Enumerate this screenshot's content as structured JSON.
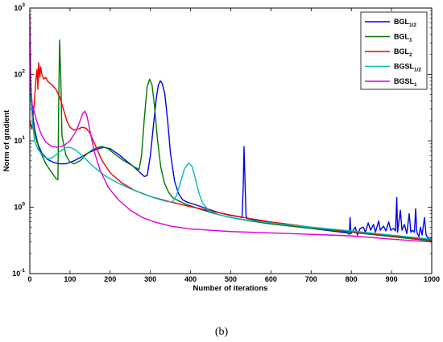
{
  "caption": "(b)",
  "chart_data": {
    "type": "line",
    "xlabel": "Number of iterations",
    "ylabel": "Norm of gradient",
    "xlim": [
      0,
      1000
    ],
    "ylim": [
      0.1,
      1000
    ],
    "yscale": "log",
    "xticks": [
      "0",
      "100",
      "200",
      "300",
      "400",
      "500",
      "600",
      "700",
      "800",
      "900",
      "1000"
    ],
    "yticks": [
      {
        "base": "10",
        "exp": "3",
        "value": 1000
      },
      {
        "base": "10",
        "exp": "2",
        "value": 100
      },
      {
        "base": "10",
        "exp": "1",
        "value": 10
      },
      {
        "base": "10",
        "exp": "0",
        "value": 1
      },
      {
        "base": "10",
        "exp": "-1",
        "value": 0.1
      }
    ],
    "grid": false,
    "legend_position": "top-right",
    "series": [
      {
        "name": "BGL",
        "sub": "1/2",
        "color": "#0000ee",
        "points": [
          [
            0,
            300
          ],
          [
            3,
            60
          ],
          [
            7,
            25
          ],
          [
            12,
            15
          ],
          [
            20,
            9
          ],
          [
            30,
            6.5
          ],
          [
            45,
            5.2
          ],
          [
            60,
            4.7
          ],
          [
            75,
            4.5
          ],
          [
            90,
            4.5
          ],
          [
            110,
            5.0
          ],
          [
            130,
            5.8
          ],
          [
            150,
            6.8
          ],
          [
            170,
            7.6
          ],
          [
            185,
            8.0
          ],
          [
            200,
            7.6
          ],
          [
            220,
            6.3
          ],
          [
            240,
            5.0
          ],
          [
            260,
            4.0
          ],
          [
            275,
            3.3
          ],
          [
            285,
            2.9
          ],
          [
            292,
            3.0
          ],
          [
            300,
            6
          ],
          [
            308,
            18
          ],
          [
            315,
            45
          ],
          [
            320,
            70
          ],
          [
            325,
            80
          ],
          [
            330,
            72
          ],
          [
            336,
            50
          ],
          [
            343,
            20
          ],
          [
            350,
            6.5
          ],
          [
            360,
            2.5
          ],
          [
            370,
            1.6
          ],
          [
            380,
            1.3
          ],
          [
            390,
            1.2
          ],
          [
            400,
            1.15
          ],
          [
            420,
            1.05
          ],
          [
            440,
            0.95
          ],
          [
            460,
            0.87
          ],
          [
            480,
            0.8
          ],
          [
            500,
            0.75
          ],
          [
            520,
            0.72
          ],
          [
            528,
            0.7
          ],
          [
            531,
            2.0
          ],
          [
            533,
            8.2
          ],
          [
            535,
            3.0
          ],
          [
            538,
            0.75
          ],
          [
            540,
            0.68
          ],
          [
            560,
            0.64
          ],
          [
            600,
            0.58
          ],
          [
            650,
            0.52
          ],
          [
            700,
            0.48
          ],
          [
            750,
            0.44
          ],
          [
            790,
            0.41
          ],
          [
            795,
            0.39
          ],
          [
            797,
            0.7
          ],
          [
            799,
            0.4
          ],
          [
            810,
            0.5
          ],
          [
            815,
            0.38
          ],
          [
            822,
            0.48
          ],
          [
            830,
            0.5
          ],
          [
            835,
            0.42
          ],
          [
            842,
            0.58
          ],
          [
            848,
            0.45
          ],
          [
            855,
            0.55
          ],
          [
            860,
            0.42
          ],
          [
            868,
            0.62
          ],
          [
            872,
            0.45
          ],
          [
            880,
            0.52
          ],
          [
            886,
            0.44
          ],
          [
            893,
            0.6
          ],
          [
            898,
            0.45
          ],
          [
            905,
            0.48
          ],
          [
            910,
            0.44
          ],
          [
            913,
            1.4
          ],
          [
            915,
            0.42
          ],
          [
            922,
            0.9
          ],
          [
            926,
            0.45
          ],
          [
            932,
            0.55
          ],
          [
            938,
            0.4
          ],
          [
            944,
            0.8
          ],
          [
            948,
            0.42
          ],
          [
            952,
            0.45
          ],
          [
            957,
            0.42
          ],
          [
            960,
            0.95
          ],
          [
            963,
            0.42
          ],
          [
            968,
            0.36
          ],
          [
            972,
            0.5
          ],
          [
            976,
            0.38
          ],
          [
            982,
            0.7
          ],
          [
            986,
            0.38
          ],
          [
            990,
            0.35
          ],
          [
            995,
            0.34
          ],
          [
            1000,
            0.35
          ]
        ]
      },
      {
        "name": "BGL",
        "sub": "1",
        "color": "#007700",
        "points": [
          [
            0,
            200
          ],
          [
            3,
            40
          ],
          [
            8,
            18
          ],
          [
            15,
            11
          ],
          [
            25,
            7
          ],
          [
            40,
            4.5
          ],
          [
            55,
            3.3
          ],
          [
            65,
            2.7
          ],
          [
            70,
            2.6
          ],
          [
            72,
            40
          ],
          [
            74,
            330
          ],
          [
            77,
            100
          ],
          [
            80,
            12
          ],
          [
            90,
            6
          ],
          [
            100,
            4.8
          ],
          [
            110,
            4.5
          ],
          [
            125,
            5.0
          ],
          [
            140,
            6.2
          ],
          [
            155,
            7.3
          ],
          [
            170,
            8.0
          ],
          [
            180,
            8.2
          ],
          [
            195,
            7.6
          ],
          [
            210,
            6.4
          ],
          [
            230,
            5.2
          ],
          [
            250,
            4.4
          ],
          [
            265,
            3.9
          ],
          [
            272,
            3.7
          ],
          [
            278,
            6
          ],
          [
            285,
            22
          ],
          [
            292,
            65
          ],
          [
            298,
            85
          ],
          [
            304,
            70
          ],
          [
            310,
            35
          ],
          [
            318,
            10
          ],
          [
            326,
            4
          ],
          [
            335,
            2.3
          ],
          [
            345,
            1.7
          ],
          [
            355,
            1.4
          ],
          [
            370,
            1.25
          ],
          [
            390,
            1.1
          ],
          [
            420,
            0.95
          ],
          [
            460,
            0.8
          ],
          [
            500,
            0.7
          ],
          [
            550,
            0.62
          ],
          [
            600,
            0.56
          ],
          [
            700,
            0.48
          ],
          [
            800,
            0.42
          ],
          [
            900,
            0.36
          ],
          [
            1000,
            0.31
          ]
        ]
      },
      {
        "name": "BGL",
        "sub": "2",
        "color": "#ee0000",
        "points": [
          [
            0,
            20
          ],
          [
            5,
            15
          ],
          [
            10,
            30
          ],
          [
            15,
            80
          ],
          [
            18,
            120
          ],
          [
            20,
            60
          ],
          [
            22,
            150
          ],
          [
            25,
            90
          ],
          [
            27,
            130
          ],
          [
            30,
            100
          ],
          [
            35,
            85
          ],
          [
            40,
            90
          ],
          [
            45,
            78
          ],
          [
            55,
            70
          ],
          [
            65,
            60
          ],
          [
            75,
            45
          ],
          [
            85,
            28
          ],
          [
            92,
            20
          ],
          [
            100,
            16
          ],
          [
            110,
            14.5
          ],
          [
            120,
            15
          ],
          [
            130,
            16
          ],
          [
            140,
            15.5
          ],
          [
            150,
            13
          ],
          [
            165,
            8
          ],
          [
            180,
            5
          ],
          [
            200,
            3.3
          ],
          [
            230,
            2.3
          ],
          [
            260,
            1.8
          ],
          [
            300,
            1.45
          ],
          [
            350,
            1.2
          ],
          [
            400,
            1.02
          ],
          [
            450,
            0.88
          ],
          [
            500,
            0.76
          ],
          [
            550,
            0.67
          ],
          [
            600,
            0.6
          ],
          [
            700,
            0.5
          ],
          [
            800,
            0.43
          ],
          [
            900,
            0.37
          ],
          [
            1000,
            0.32
          ]
        ]
      },
      {
        "name": "BGSL",
        "sub": "1/2",
        "color": "#00bbbb",
        "points": [
          [
            0,
            500
          ],
          [
            3,
            40
          ],
          [
            7,
            18
          ],
          [
            12,
            10
          ],
          [
            20,
            7.5
          ],
          [
            30,
            6.2
          ],
          [
            40,
            5.5
          ],
          [
            50,
            5.4
          ],
          [
            60,
            5.8
          ],
          [
            70,
            6.5
          ],
          [
            80,
            7.3
          ],
          [
            90,
            7.9
          ],
          [
            100,
            8.0
          ],
          [
            115,
            7.2
          ],
          [
            135,
            5.6
          ],
          [
            160,
            4.0
          ],
          [
            190,
            2.9
          ],
          [
            220,
            2.3
          ],
          [
            250,
            1.9
          ],
          [
            280,
            1.6
          ],
          [
            310,
            1.38
          ],
          [
            340,
            1.22
          ],
          [
            355,
            1.2
          ],
          [
            365,
            1.5
          ],
          [
            375,
            2.4
          ],
          [
            385,
            3.8
          ],
          [
            395,
            4.6
          ],
          [
            403,
            4.2
          ],
          [
            410,
            3.0
          ],
          [
            420,
            1.7
          ],
          [
            430,
            1.15
          ],
          [
            445,
            0.9
          ],
          [
            470,
            0.77
          ],
          [
            500,
            0.7
          ],
          [
            550,
            0.63
          ],
          [
            600,
            0.58
          ],
          [
            700,
            0.5
          ],
          [
            800,
            0.44
          ],
          [
            900,
            0.38
          ],
          [
            1000,
            0.33
          ]
        ]
      },
      {
        "name": "BGSL",
        "sub": "1",
        "color": "#dd00dd",
        "points": [
          [
            0,
            800
          ],
          [
            3,
            60
          ],
          [
            6,
            35
          ],
          [
            10,
            30
          ],
          [
            15,
            22
          ],
          [
            22,
            16
          ],
          [
            30,
            12
          ],
          [
            40,
            9.5
          ],
          [
            55,
            8.2
          ],
          [
            70,
            8.0
          ],
          [
            85,
            8.5
          ],
          [
            100,
            10
          ],
          [
            115,
            14
          ],
          [
            125,
            20
          ],
          [
            132,
            26
          ],
          [
            137,
            28
          ],
          [
            142,
            24
          ],
          [
            150,
            14
          ],
          [
            160,
            7
          ],
          [
            175,
            3.6
          ],
          [
            195,
            2.0
          ],
          [
            220,
            1.3
          ],
          [
            250,
            0.9
          ],
          [
            280,
            0.7
          ],
          [
            310,
            0.6
          ],
          [
            350,
            0.52
          ],
          [
            400,
            0.47
          ],
          [
            500,
            0.43
          ],
          [
            600,
            0.41
          ],
          [
            700,
            0.39
          ],
          [
            800,
            0.37
          ],
          [
            900,
            0.33
          ],
          [
            1000,
            0.3
          ]
        ]
      }
    ]
  }
}
